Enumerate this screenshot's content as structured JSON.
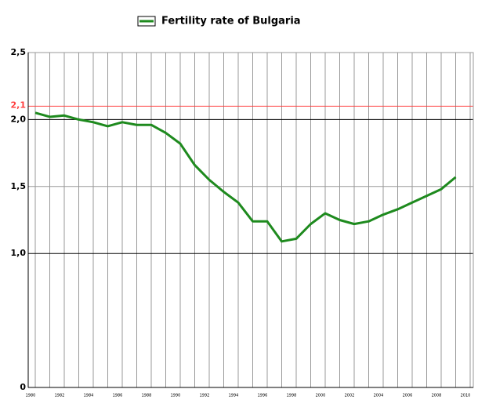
{
  "chart_data": {
    "type": "line",
    "series": [
      {
        "name": "Fertility rate of Bulgaria",
        "color": "#1e8a1e",
        "values": [
          2.05,
          2.02,
          2.03,
          2.0,
          1.98,
          1.95,
          1.98,
          1.96,
          1.96,
          1.9,
          1.82,
          1.66,
          1.55,
          1.46,
          1.38,
          1.24,
          1.24,
          1.09,
          1.11,
          1.22,
          1.3,
          1.25,
          1.22,
          1.24,
          1.29,
          1.33,
          1.38,
          1.43,
          1.48,
          1.57
        ]
      }
    ],
    "x": [
      1980,
      1981,
      1982,
      1983,
      1984,
      1985,
      1986,
      1987,
      1988,
      1989,
      1990,
      1991,
      1992,
      1993,
      1994,
      1995,
      1996,
      1997,
      1998,
      1999,
      2000,
      2001,
      2002,
      2003,
      2004,
      2005,
      2006,
      2007,
      2008,
      2009
    ],
    "xlim": [
      1980,
      2010
    ],
    "xticks": [
      1980,
      1982,
      1984,
      1986,
      1988,
      1990,
      1992,
      1994,
      1996,
      1998,
      2000,
      2002,
      2004,
      2006,
      2008,
      2010
    ],
    "ylim": [
      0,
      2.5
    ],
    "yticks": [
      0,
      {
        "value": 1.0,
        "label": "1,0"
      },
      {
        "value": 1.5,
        "label": "1,5"
      },
      {
        "value": 2.0,
        "label": "2,0"
      },
      {
        "value": 2.5,
        "label": "2,5"
      }
    ],
    "reference_line": {
      "value": 2.1,
      "label": "2,1",
      "color": "#ff4040"
    },
    "grid": true,
    "legend": "top"
  }
}
